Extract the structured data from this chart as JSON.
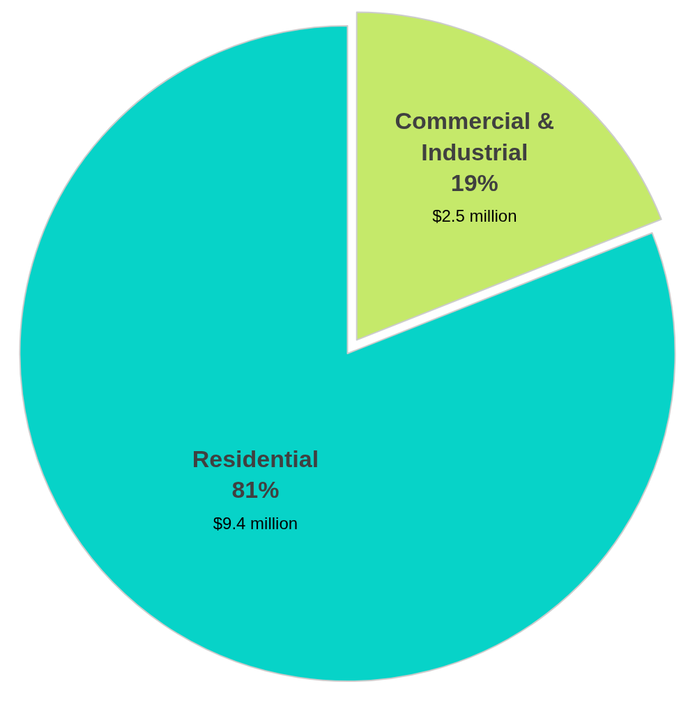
{
  "chart_data": {
    "type": "pie",
    "categories": [
      "Commercial & Industrial",
      "Residential"
    ],
    "values": [
      19,
      81
    ],
    "colors": [
      "#c5e96a",
      "#07d3c8"
    ],
    "value_labels": [
      "19%",
      "81%"
    ],
    "annotations": [
      "$2.5 million",
      "$9.4 million"
    ],
    "legend": false
  }
}
